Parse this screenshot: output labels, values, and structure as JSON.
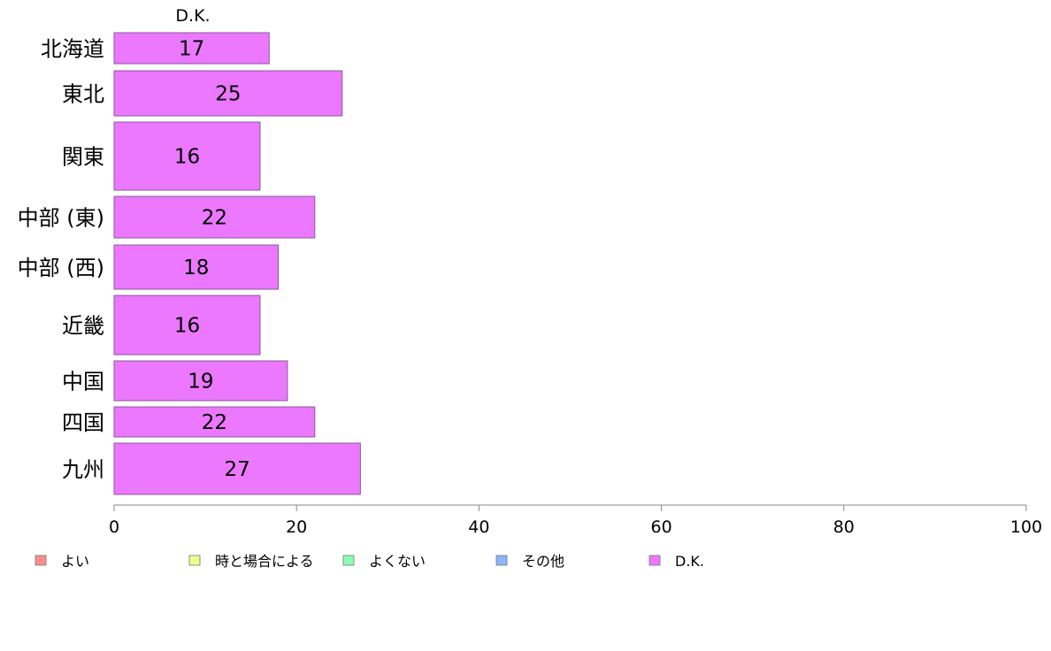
{
  "chart_data": {
    "type": "bar",
    "orientation": "horizontal",
    "stacked": true,
    "categories": [
      "北海道",
      "東北",
      "関東",
      "中部 (東)",
      "中部 (西)",
      "近畿",
      "中国",
      "四国",
      "九州"
    ],
    "series": [
      {
        "name": "よい",
        "color": "#ff8c8c",
        "values": [
          0,
          0,
          0,
          0,
          0,
          0,
          0,
          0,
          0
        ]
      },
      {
        "name": "時と場合による",
        "color": "#eeff8c",
        "values": [
          0,
          0,
          0,
          0,
          0,
          0,
          0,
          0,
          0
        ]
      },
      {
        "name": "よくない",
        "color": "#8cffb4",
        "values": [
          0,
          0,
          0,
          0,
          0,
          0,
          0,
          0,
          0
        ]
      },
      {
        "name": "その他",
        "color": "#8cb4ff",
        "values": [
          0,
          0,
          0,
          0,
          0,
          0,
          0,
          0,
          0
        ]
      },
      {
        "name": "D.K.",
        "color": "#eb78ff",
        "values": [
          17,
          25,
          16,
          22,
          18,
          16,
          19,
          22,
          27
        ],
        "labels": [
          "17",
          "25",
          "16",
          "22",
          "18",
          "16",
          "19",
          "22",
          "27"
        ]
      }
    ],
    "series_header": "D.K.",
    "xlim": [
      0,
      100
    ],
    "xticks": [
      0,
      20,
      40,
      60,
      80,
      100
    ],
    "xlabel": "",
    "ylabel": "",
    "title": "",
    "grid": false,
    "legend_position": "bottom"
  }
}
